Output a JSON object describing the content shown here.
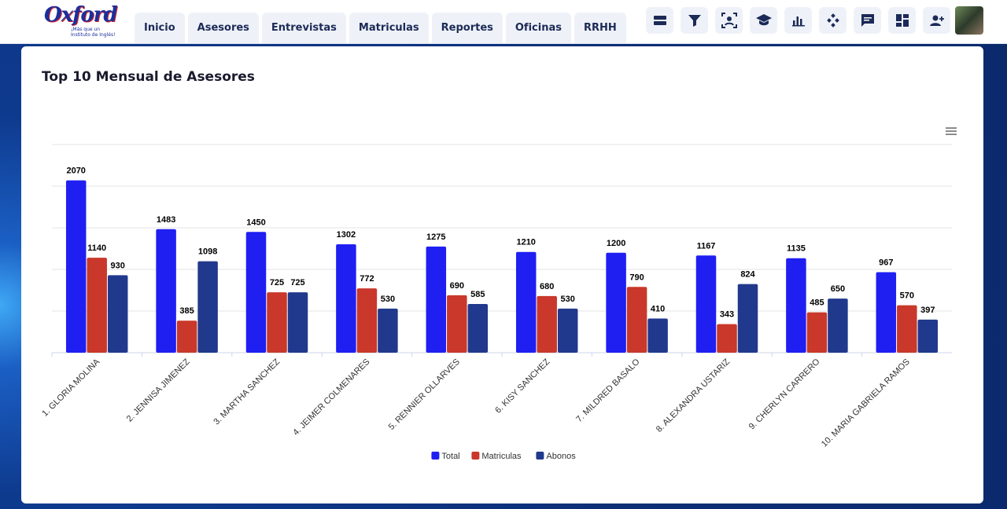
{
  "header": {
    "logo": "Oxford",
    "tagline": "¡Más que un Instituto de Inglés!",
    "nav": [
      "Inicio",
      "Asesores",
      "Entrevistas",
      "Matriculas",
      "Reportes",
      "Oficinas",
      "RRHH"
    ]
  },
  "chart_data": {
    "type": "bar",
    "title": "Top 10 Mensual de Asesores",
    "categories": [
      "1. GLORIA MOLINA",
      "2. JENNISA JIMENEZ",
      "3. MARTHA SANCHEZ",
      "4. JEIMER COLMENARES",
      "5. RENNIER OLLARVES",
      "6. KISY SANCHEZ",
      "7. MILDRED BASALO",
      "8. ALEXANDRA USTARIZ",
      "9. CHERLYN CARRERO",
      "10. MARIA GABRIELA RAMOS"
    ],
    "series": [
      {
        "name": "Total",
        "color": "#1f1ff2",
        "values": [
          2070,
          1483,
          1450,
          1302,
          1275,
          1210,
          1200,
          1167,
          1135,
          967
        ]
      },
      {
        "name": "Matriculas",
        "color": "#c9382a",
        "values": [
          1140,
          385,
          725,
          772,
          690,
          680,
          790,
          343,
          485,
          570
        ]
      },
      {
        "name": "Abonos",
        "color": "#21398c",
        "values": [
          930,
          1098,
          725,
          530,
          585,
          530,
          410,
          824,
          650,
          397
        ]
      }
    ],
    "ylim": [
      0,
      2500
    ],
    "yticks": [
      0,
      500,
      1000,
      1500,
      2000,
      2500
    ],
    "grid": true,
    "legend": "bottom"
  }
}
